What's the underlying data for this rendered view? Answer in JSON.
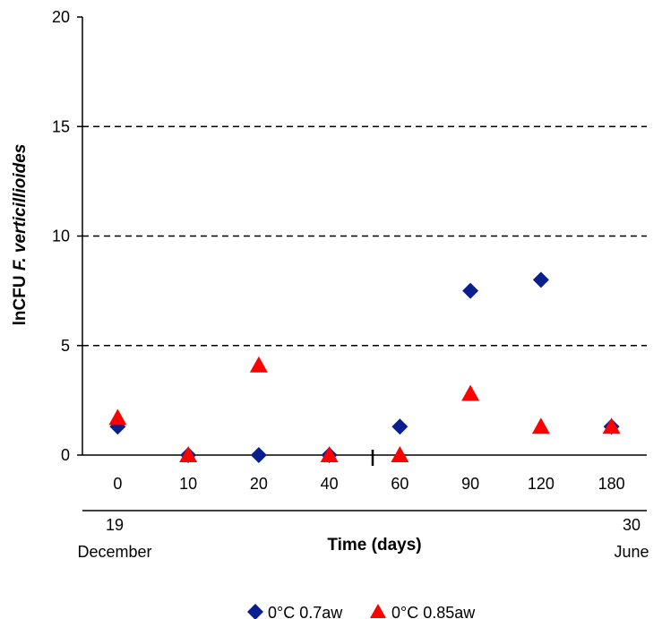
{
  "chart_data": {
    "type": "scatter",
    "title": "",
    "xlabel": "Time (days)",
    "ylabel_prefix": "lnCFU ",
    "ylabel_italic": "F. verticillioides",
    "categories": [
      "0",
      "10",
      "20",
      "40",
      "60",
      "90",
      "120",
      "180"
    ],
    "ylim": [
      0,
      20
    ],
    "yticks": [
      "0",
      "5",
      "10",
      "15",
      "20"
    ],
    "grid": "dashed horizontal at 5, 10, 15",
    "start_label": [
      "19",
      "December"
    ],
    "end_label": [
      "30",
      "June"
    ],
    "legend_position": "bottom",
    "series": [
      {
        "name": "0°C 0.7aw",
        "marker": "diamond",
        "color": "#0a1f8f",
        "values": [
          1.3,
          0,
          0,
          0,
          1.3,
          7.5,
          8.0,
          1.3
        ]
      },
      {
        "name": "0°C 0.85aw",
        "marker": "triangle",
        "color": "#ff0000",
        "values": [
          1.7,
          0,
          4.1,
          0,
          0,
          2.8,
          1.3,
          1.3
        ]
      }
    ]
  }
}
